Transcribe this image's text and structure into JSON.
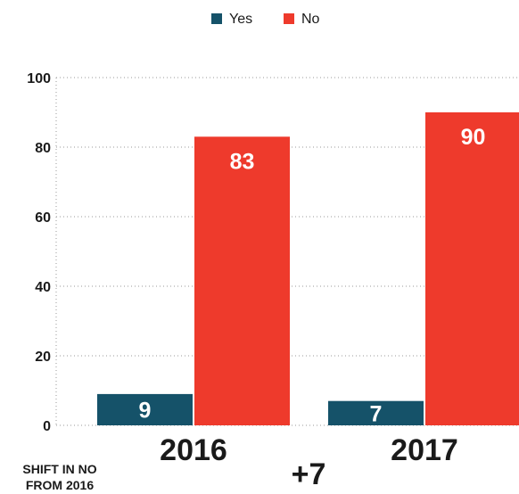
{
  "chart_data": {
    "type": "bar",
    "categories": [
      "2016",
      "2017"
    ],
    "series": [
      {
        "name": "Yes",
        "values": [
          9,
          7
        ],
        "color": "#155269"
      },
      {
        "name": "No",
        "values": [
          83,
          90
        ],
        "color": "#ee3a2c"
      }
    ],
    "ylim": [
      0,
      100
    ],
    "yticks": [
      0,
      20,
      40,
      60,
      80,
      100
    ],
    "grid": "dotted",
    "legend_position": "top-center",
    "data_labels": true,
    "footnote": {
      "label_lines": [
        "SHIFT IN NO",
        "FROM 2016"
      ],
      "value": "+7"
    }
  }
}
